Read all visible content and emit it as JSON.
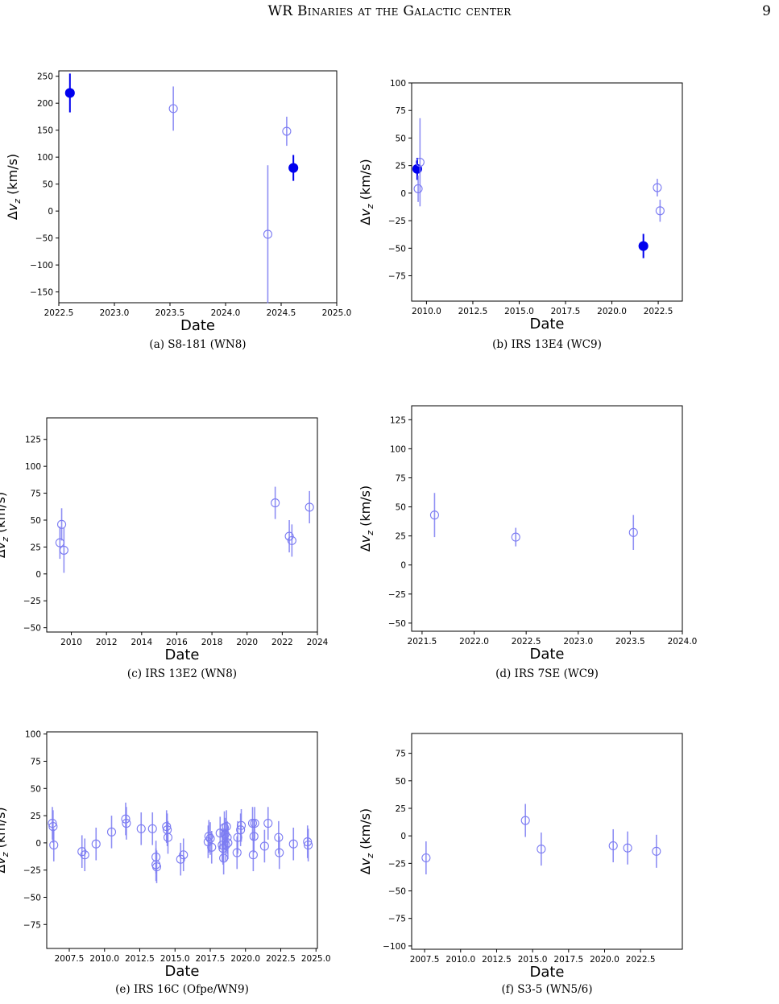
{
  "header": {
    "title": "WR Binaries at the Galactic center",
    "page_number": "9"
  },
  "chart_data": [
    {
      "type": "scatter",
      "caption": "(a) S8-181 (WN8)",
      "xlabel": "Date",
      "ylabel": "Δv_z (km/s)",
      "xlim": [
        2022.5,
        2025.0
      ],
      "ylim": [
        -170,
        260
      ],
      "xticks": [
        2022.5,
        2023.0,
        2023.5,
        2024.0,
        2024.5,
        2025.0
      ],
      "xtick_labels": [
        "2022.5",
        "2023.0",
        "2023.5",
        "2024.0",
        "2024.5",
        "2025.0"
      ],
      "yticks": [
        -150,
        -100,
        -50,
        0,
        50,
        100,
        150,
        200,
        250
      ],
      "ytick_labels": [
        "−150",
        "−100",
        "−50",
        "0",
        "50",
        "100",
        "150",
        "200",
        "250"
      ],
      "points": [
        {
          "x": 2022.6,
          "y": 219,
          "err": 36,
          "filled": true
        },
        {
          "x": 2023.53,
          "y": 190,
          "err": 41,
          "filled": false
        },
        {
          "x": 2024.38,
          "y": -43,
          "err": 128,
          "filled": false
        },
        {
          "x": 2024.55,
          "y": 148,
          "err": 27,
          "filled": false
        },
        {
          "x": 2024.61,
          "y": 80,
          "err": 24,
          "filled": true
        }
      ]
    },
    {
      "type": "scatter",
      "caption": "(b) IRS 13E4 (WC9)",
      "xlabel": "Date",
      "ylabel": "Δv_z (km/s)",
      "xlim": [
        2009.2,
        2023.8
      ],
      "ylim": [
        -98,
        100
      ],
      "xticks": [
        2010.0,
        2012.5,
        2015.0,
        2017.5,
        2020.0,
        2022.5
      ],
      "xtick_labels": [
        "2010.0",
        "2012.5",
        "2015.0",
        "2017.5",
        "2020.0",
        "2022.5"
      ],
      "yticks": [
        -75,
        -50,
        -25,
        0,
        25,
        50,
        75,
        100
      ],
      "ytick_labels": [
        "−75",
        "−50",
        "−25",
        "0",
        "25",
        "50",
        "75",
        "100"
      ],
      "points": [
        {
          "x": 2009.5,
          "y": 22,
          "err": 10,
          "filled": true
        },
        {
          "x": 2009.55,
          "y": 4,
          "err": 12,
          "filled": false
        },
        {
          "x": 2009.65,
          "y": 28,
          "err": 40,
          "filled": false
        },
        {
          "x": 2021.7,
          "y": -48,
          "err": 11,
          "filled": true
        },
        {
          "x": 2022.45,
          "y": 5,
          "err": 8,
          "filled": false
        },
        {
          "x": 2022.6,
          "y": -16,
          "err": 10,
          "filled": false
        }
      ]
    },
    {
      "type": "scatter",
      "caption": "(c) IRS 13E2 (WN8)",
      "xlabel": "Date",
      "ylabel": "Δv_z (km/s)",
      "xlim": [
        2008.6,
        2024.0
      ],
      "ylim": [
        -54,
        145
      ],
      "xticks": [
        2010,
        2012,
        2014,
        2016,
        2018,
        2020,
        2022,
        2024
      ],
      "xtick_labels": [
        "2010",
        "2012",
        "2014",
        "2016",
        "2018",
        "2020",
        "2022",
        "2024"
      ],
      "yticks": [
        -50,
        -25,
        0,
        25,
        50,
        75,
        100,
        125
      ],
      "ytick_labels": [
        "−50",
        "−25",
        "0",
        "25",
        "50",
        "75",
        "100",
        "125"
      ],
      "points": [
        {
          "x": 2009.35,
          "y": 29,
          "err": 15,
          "filled": false
        },
        {
          "x": 2009.45,
          "y": 46,
          "err": 15,
          "filled": false
        },
        {
          "x": 2009.58,
          "y": 22,
          "err": 21,
          "filled": false
        },
        {
          "x": 2021.6,
          "y": 66,
          "err": 15,
          "filled": false
        },
        {
          "x": 2022.4,
          "y": 35,
          "err": 15,
          "filled": false
        },
        {
          "x": 2022.55,
          "y": 31,
          "err": 15,
          "filled": false
        },
        {
          "x": 2023.55,
          "y": 62,
          "err": 15,
          "filled": false
        }
      ]
    },
    {
      "type": "scatter",
      "caption": "(d) IRS 7SE (WC9)",
      "xlabel": "Date",
      "ylabel": "Δv_z (km/s)",
      "xlim": [
        2021.4,
        2024.0
      ],
      "ylim": [
        -57,
        137
      ],
      "xticks": [
        2021.5,
        2022.0,
        2022.5,
        2023.0,
        2023.5,
        2024.0
      ],
      "xtick_labels": [
        "2021.5",
        "2022.0",
        "2022.5",
        "2023.0",
        "2023.5",
        "2024.0"
      ],
      "yticks": [
        -50,
        -25,
        0,
        25,
        50,
        75,
        100,
        125
      ],
      "ytick_labels": [
        "−50",
        "−25",
        "0",
        "25",
        "50",
        "75",
        "100",
        "125"
      ],
      "points": [
        {
          "x": 2021.62,
          "y": 43,
          "err": 19,
          "filled": false
        },
        {
          "x": 2022.4,
          "y": 24,
          "err": 8,
          "filled": false
        },
        {
          "x": 2023.53,
          "y": 28,
          "err": 15,
          "filled": false
        }
      ]
    },
    {
      "type": "scatter",
      "caption": "(e) IRS 16C (Ofpe/WN9)",
      "xlabel": "Date",
      "ylabel": "Δv_z (km/s)",
      "xlim": [
        2005.9,
        2025.1
      ],
      "ylim": [
        -97,
        102
      ],
      "xticks": [
        2007.5,
        2010.0,
        2012.5,
        2015.0,
        2017.5,
        2020.0,
        2022.5,
        2025.0
      ],
      "xtick_labels": [
        "2007.5",
        "2010.0",
        "2012.5",
        "2015.0",
        "2017.5",
        "2020.0",
        "2022.5",
        "2025.0"
      ],
      "yticks": [
        -75,
        -50,
        -25,
        0,
        25,
        50,
        75,
        100
      ],
      "ytick_labels": [
        "−75",
        "−50",
        "−25",
        "0",
        "25",
        "50",
        "75",
        "100"
      ],
      "points": [
        {
          "x": 2006.3,
          "y": 18,
          "err": 15,
          "filled": false
        },
        {
          "x": 2006.35,
          "y": 15,
          "err": 15,
          "filled": false
        },
        {
          "x": 2006.4,
          "y": -2,
          "err": 15,
          "filled": false
        },
        {
          "x": 2008.4,
          "y": -8,
          "err": 15,
          "filled": false
        },
        {
          "x": 2008.6,
          "y": -11,
          "err": 15,
          "filled": false
        },
        {
          "x": 2009.4,
          "y": -1,
          "err": 15,
          "filled": false
        },
        {
          "x": 2010.5,
          "y": 10,
          "err": 15,
          "filled": false
        },
        {
          "x": 2011.5,
          "y": 22,
          "err": 15,
          "filled": false
        },
        {
          "x": 2011.55,
          "y": 18,
          "err": 15,
          "filled": false
        },
        {
          "x": 2012.6,
          "y": 13,
          "err": 15,
          "filled": false
        },
        {
          "x": 2013.4,
          "y": 13,
          "err": 15,
          "filled": false
        },
        {
          "x": 2013.65,
          "y": -13,
          "err": 15,
          "filled": false
        },
        {
          "x": 2013.65,
          "y": -20,
          "err": 15,
          "filled": false
        },
        {
          "x": 2013.7,
          "y": -22,
          "err": 15,
          "filled": false
        },
        {
          "x": 2014.4,
          "y": 15,
          "err": 15,
          "filled": false
        },
        {
          "x": 2014.45,
          "y": 12,
          "err": 15,
          "filled": false
        },
        {
          "x": 2014.5,
          "y": 5,
          "err": 15,
          "filled": false
        },
        {
          "x": 2015.4,
          "y": -15,
          "err": 15,
          "filled": false
        },
        {
          "x": 2015.6,
          "y": -11,
          "err": 15,
          "filled": false
        },
        {
          "x": 2017.35,
          "y": 1,
          "err": 15,
          "filled": false
        },
        {
          "x": 2017.4,
          "y": 6,
          "err": 15,
          "filled": false
        },
        {
          "x": 2017.5,
          "y": 4,
          "err": 15,
          "filled": false
        },
        {
          "x": 2017.6,
          "y": -4,
          "err": 15,
          "filled": false
        },
        {
          "x": 2018.2,
          "y": 9,
          "err": 15,
          "filled": false
        },
        {
          "x": 2018.35,
          "y": -2,
          "err": 15,
          "filled": false
        },
        {
          "x": 2018.4,
          "y": -5,
          "err": 15,
          "filled": false
        },
        {
          "x": 2018.45,
          "y": -14,
          "err": 15,
          "filled": false
        },
        {
          "x": 2018.5,
          "y": 14,
          "err": 15,
          "filled": false
        },
        {
          "x": 2018.55,
          "y": 8,
          "err": 15,
          "filled": false
        },
        {
          "x": 2018.6,
          "y": -2,
          "err": 15,
          "filled": false
        },
        {
          "x": 2018.65,
          "y": 15,
          "err": 15,
          "filled": false
        },
        {
          "x": 2018.7,
          "y": 5,
          "err": 15,
          "filled": false
        },
        {
          "x": 2018.75,
          "y": 0,
          "err": 15,
          "filled": false
        },
        {
          "x": 2019.4,
          "y": -9,
          "err": 15,
          "filled": false
        },
        {
          "x": 2019.45,
          "y": 5,
          "err": 15,
          "filled": false
        },
        {
          "x": 2019.65,
          "y": 12,
          "err": 15,
          "filled": false
        },
        {
          "x": 2019.7,
          "y": 16,
          "err": 15,
          "filled": false
        },
        {
          "x": 2020.5,
          "y": 18,
          "err": 15,
          "filled": false
        },
        {
          "x": 2020.55,
          "y": -11,
          "err": 15,
          "filled": false
        },
        {
          "x": 2020.6,
          "y": 6,
          "err": 15,
          "filled": false
        },
        {
          "x": 2020.65,
          "y": 18,
          "err": 15,
          "filled": false
        },
        {
          "x": 2021.35,
          "y": -3,
          "err": 15,
          "filled": false
        },
        {
          "x": 2021.6,
          "y": 18,
          "err": 15,
          "filled": false
        },
        {
          "x": 2022.35,
          "y": 5,
          "err": 15,
          "filled": false
        },
        {
          "x": 2022.4,
          "y": -9,
          "err": 15,
          "filled": false
        },
        {
          "x": 2023.4,
          "y": -1,
          "err": 15,
          "filled": false
        },
        {
          "x": 2024.4,
          "y": 1,
          "err": 15,
          "filled": false
        },
        {
          "x": 2024.45,
          "y": -2,
          "err": 15,
          "filled": false
        }
      ]
    },
    {
      "type": "scatter",
      "caption": "(f) S3-5 (WN5/6)",
      "xlabel": "Date",
      "ylabel": "Δv_z (km/s)",
      "xlim": [
        2006.6,
        2025.4
      ],
      "ylim": [
        -103,
        93
      ],
      "xticks": [
        2007.5,
        2010.0,
        2012.5,
        2015.0,
        2017.5,
        2020.0,
        2022.5
      ],
      "xtick_labels": [
        "2007.5",
        "2010.0",
        "2012.5",
        "2015.0",
        "2017.5",
        "2020.0",
        "2022.5"
      ],
      "yticks": [
        -100,
        -75,
        -50,
        -25,
        0,
        25,
        50,
        75
      ],
      "ytick_labels": [
        "−100",
        "−75",
        "−50",
        "−25",
        "0",
        "25",
        "50",
        "75"
      ],
      "points": [
        {
          "x": 2007.6,
          "y": -20,
          "err": 15,
          "filled": false
        },
        {
          "x": 2014.5,
          "y": 14,
          "err": 15,
          "filled": false
        },
        {
          "x": 2015.6,
          "y": -12,
          "err": 15,
          "filled": false
        },
        {
          "x": 2020.6,
          "y": -9,
          "err": 15,
          "filled": false
        },
        {
          "x": 2021.6,
          "y": -11,
          "err": 15,
          "filled": false
        },
        {
          "x": 2023.6,
          "y": -14,
          "err": 15,
          "filled": false
        }
      ]
    }
  ],
  "colors": {
    "filled": "#0000ee",
    "open": "#7b7bf2",
    "axis": "#000000"
  }
}
